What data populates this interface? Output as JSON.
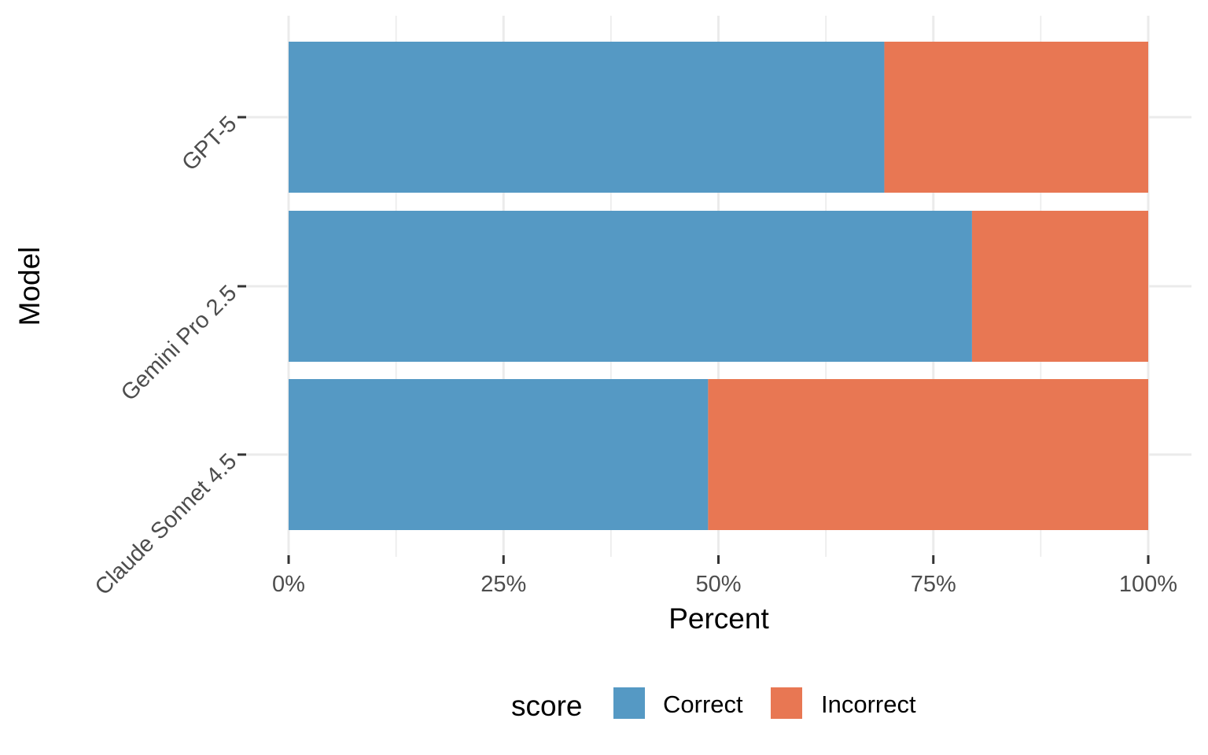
{
  "chart_data": {
    "type": "bar",
    "orientation": "horizontal",
    "stacked": true,
    "categories": [
      "GPT-5",
      "Gemini Pro 2.5",
      "Claude Sonnet 4.5"
    ],
    "series": [
      {
        "name": "Correct",
        "color": "#5599C4",
        "values": [
          69.3,
          79.5,
          48.8
        ]
      },
      {
        "name": "Incorrect",
        "color": "#E87753",
        "values": [
          30.7,
          20.5,
          51.2
        ]
      }
    ],
    "xlabel": "Percent",
    "ylabel": "Model",
    "xlim": [
      0,
      100
    ],
    "x_ticks": [
      0,
      25,
      50,
      75,
      100
    ],
    "x_tick_labels": [
      "0%",
      "25%",
      "50%",
      "75%",
      "100%"
    ],
    "grid": true,
    "legend": {
      "title": "score",
      "position": "bottom",
      "entries": [
        "Correct",
        "Incorrect"
      ]
    }
  }
}
